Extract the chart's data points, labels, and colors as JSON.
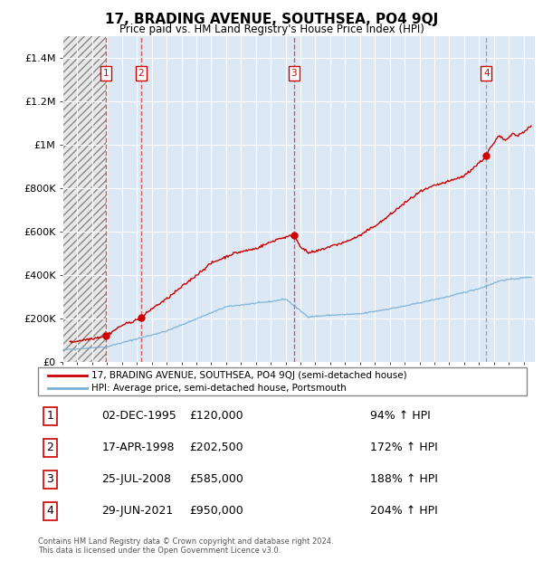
{
  "title": "17, BRADING AVENUE, SOUTHSEA, PO4 9QJ",
  "subtitle": "Price paid vs. HM Land Registry's House Price Index (HPI)",
  "footer1": "Contains HM Land Registry data © Crown copyright and database right 2024.",
  "footer2": "This data is licensed under the Open Government Licence v3.0.",
  "legend_red": "17, BRADING AVENUE, SOUTHSEA, PO4 9QJ (semi-detached house)",
  "legend_blue": "HPI: Average price, semi-detached house, Portsmouth",
  "sales": [
    {
      "label": "1",
      "date": "02-DEC-1995",
      "price": 120000,
      "pct": "94% ↑ HPI",
      "x_year": 1995.92
    },
    {
      "label": "2",
      "date": "17-APR-1998",
      "price": 202500,
      "pct": "172% ↑ HPI",
      "x_year": 1998.29
    },
    {
      "label": "3",
      "date": "25-JUL-2008",
      "price": 585000,
      "pct": "188% ↑ HPI",
      "x_year": 2008.56
    },
    {
      "label": "4",
      "date": "29-JUN-2021",
      "price": 950000,
      "pct": "204% ↑ HPI",
      "x_year": 2021.49
    }
  ],
  "table_rows": [
    [
      "1",
      "02-DEC-1995",
      "£120,000",
      "94% ↑ HPI"
    ],
    [
      "2",
      "17-APR-1998",
      "£202,500",
      "172% ↑ HPI"
    ],
    [
      "3",
      "25-JUL-2008",
      "£585,000",
      "188% ↑ HPI"
    ],
    [
      "4",
      "29-JUN-2021",
      "£950,000",
      "204% ↑ HPI"
    ]
  ],
  "ylim": [
    0,
    1500000
  ],
  "yticks": [
    0,
    200000,
    400000,
    600000,
    800000,
    1000000,
    1200000,
    1400000
  ],
  "ytick_labels": [
    "£0",
    "£200K",
    "£400K",
    "£600K",
    "£800K",
    "£1M",
    "£1.2M",
    "£1.4M"
  ],
  "xlim_start": 1993.0,
  "xlim_end": 2024.75,
  "chart_bg": "#dce9f5",
  "red_color": "#cc0000",
  "blue_color": "#7bafd4",
  "grid_color": "#ffffff",
  "hatch_color": "#c0c0c0",
  "dashed_red": "#dd4444",
  "dashed_grey": "#9999bb"
}
